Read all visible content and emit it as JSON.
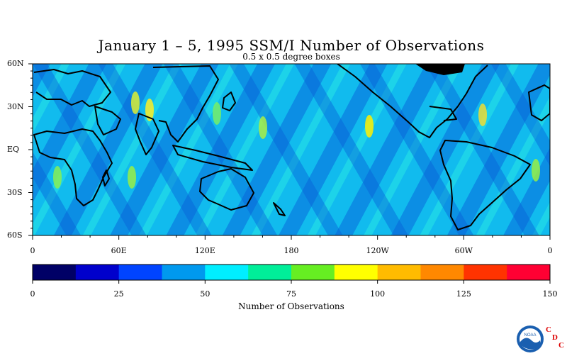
{
  "title": "January 1 – 5, 1995 SSM/I Number of Observations",
  "subtitle": "0.5 x 0.5 degree boxes",
  "map": {
    "lat_labels": [
      "60N",
      "30N",
      "EQ",
      "30S",
      "60S"
    ],
    "lon_labels": [
      "0",
      "60E",
      "120E",
      "180",
      "120W",
      "60W",
      "0"
    ],
    "lat_range": [
      -60,
      60
    ],
    "lon_range": [
      0,
      360
    ],
    "land_color": "#000000",
    "coastline_color": "#000000"
  },
  "colorbar": {
    "title": "Number of Observations",
    "tick_labels": [
      "0",
      "25",
      "50",
      "75",
      "100",
      "125",
      "150"
    ],
    "range": [
      0,
      150
    ],
    "colors": [
      "#000066",
      "#0000cc",
      "#0044ff",
      "#0099ee",
      "#00eeff",
      "#00ee99",
      "#66ee22",
      "#ffff00",
      "#ffbb00",
      "#ff8800",
      "#ff3300",
      "#ff0033"
    ]
  },
  "logo": {
    "icon": "noaa-logo-icon",
    "text": "NOAA",
    "letters": [
      "C",
      "D",
      "C"
    ],
    "letter_color": "#dd0000"
  }
}
